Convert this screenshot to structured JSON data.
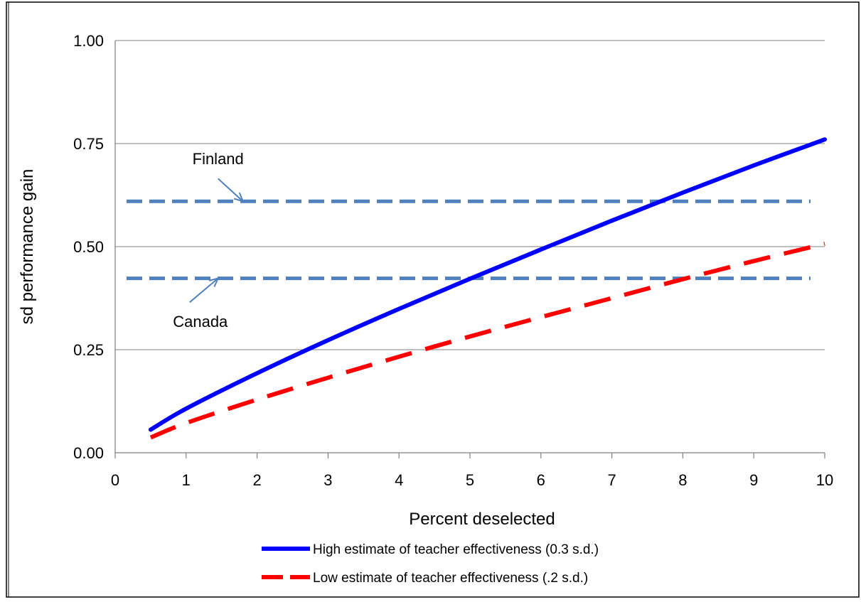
{
  "chart_data": {
    "type": "line",
    "title": "",
    "xlabel": "Percent deselected",
    "ylabel": "sd performance gain",
    "xlim": [
      0,
      10
    ],
    "ylim": [
      0,
      1
    ],
    "x_ticks": [
      "0",
      "1",
      "2",
      "3",
      "4",
      "5",
      "6",
      "7",
      "8",
      "9",
      "10"
    ],
    "y_ticks": [
      "0.00",
      "0.25",
      "0.50",
      "0.75",
      "1.00"
    ],
    "grid": "horizontal",
    "legend_position": "bottom",
    "series": [
      {
        "name": "High estimate of teacher effectiveness (0.3 s.d.)",
        "style": "solid",
        "color": "#0000ff",
        "x": [
          0.5,
          1,
          2,
          3,
          4,
          5,
          6,
          7,
          8,
          9,
          10
        ],
        "y": [
          0.056,
          0.107,
          0.193,
          0.273,
          0.349,
          0.422,
          0.493,
          0.563,
          0.631,
          0.697,
          0.76
        ]
      },
      {
        "name": "Low estimate of teacher effectiveness (.2 s.d.)",
        "style": "dashed",
        "color": "#ff0000",
        "x": [
          0.5,
          1,
          2,
          3,
          4,
          5,
          6,
          7,
          8,
          9,
          10
        ],
        "y": [
          0.037,
          0.072,
          0.129,
          0.182,
          0.233,
          0.282,
          0.329,
          0.375,
          0.421,
          0.465,
          0.507
        ]
      }
    ],
    "reference_lines": [
      {
        "label": "Finland",
        "y": 0.61,
        "x_from": 0,
        "x_to": 9.8,
        "color": "#4f81bd",
        "label_at": [
          1.45,
          0.7
        ],
        "arrow_from": [
          1.45,
          0.665
        ],
        "arrow_to": [
          1.8,
          0.61
        ]
      },
      {
        "label": "Canada",
        "y": 0.423,
        "x_from": 0,
        "x_to": 9.8,
        "color": "#4f81bd",
        "label_at": [
          1.2,
          0.305
        ],
        "arrow_from": [
          1.05,
          0.365
        ],
        "arrow_to": [
          1.45,
          0.423
        ]
      }
    ]
  }
}
